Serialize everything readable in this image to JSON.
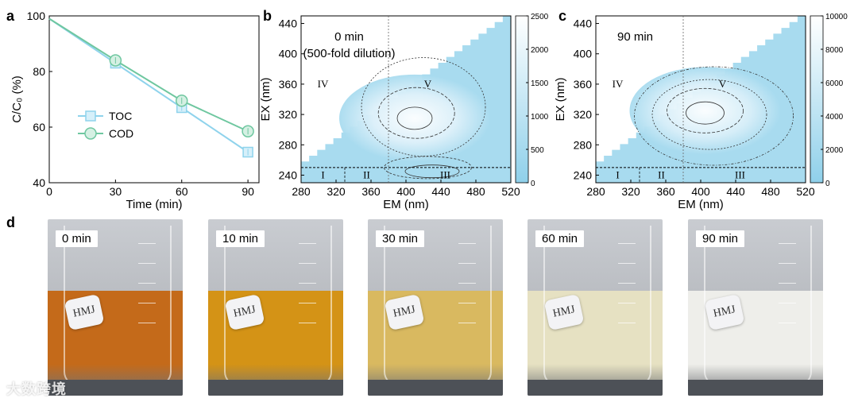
{
  "panels": {
    "a": "a",
    "b": "b",
    "c": "c",
    "d": "d"
  },
  "chart_data": [
    {
      "type": "line",
      "panel": "a",
      "x": [
        0,
        30,
        60,
        90
      ],
      "series": [
        {
          "name": "TOC",
          "values": [
            99,
            83,
            67,
            51
          ],
          "color": "#8fd3ec",
          "marker": "square"
        },
        {
          "name": "COD",
          "values": [
            99,
            84,
            69.5,
            58.5
          ],
          "color": "#6fc7a0",
          "marker": "circle"
        }
      ],
      "xlabel": "Time (min)",
      "ylabel": "C/C₀ (%)",
      "xticks": [
        "0",
        "30",
        "60",
        "90"
      ],
      "yticks": [
        "40",
        "60",
        "80",
        "100"
      ],
      "xlim": [
        0,
        95
      ],
      "ylim": [
        40,
        100
      ]
    },
    {
      "type": "heatmap",
      "panel": "b",
      "title": "0 min",
      "subtitle": "(500-fold dilution)",
      "xlabel": "EM (nm)",
      "ylabel": "EX (nm)",
      "xticks": [
        "280",
        "320",
        "360",
        "400",
        "440",
        "480",
        "520"
      ],
      "yticks": [
        "240",
        "280",
        "320",
        "360",
        "400",
        "440"
      ],
      "xlim": [
        280,
        520
      ],
      "ylim": [
        230,
        450
      ],
      "colorbar_ticks": [
        "0",
        "500",
        "1000",
        "1500",
        "2000",
        "2500"
      ],
      "colorbar_range": [
        0,
        2500
      ],
      "regions": [
        "I",
        "II",
        "III",
        "IV",
        "V"
      ],
      "divisions": {
        "ex_split": 250,
        "em_splits": [
          330,
          380
        ]
      },
      "peak": {
        "em": 410,
        "ex": 315
      }
    },
    {
      "type": "heatmap",
      "panel": "c",
      "title": "90 min",
      "xlabel": "EM (nm)",
      "ylabel": "EX (nm)",
      "xticks": [
        "280",
        "320",
        "360",
        "400",
        "440",
        "480",
        "520"
      ],
      "yticks": [
        "240",
        "280",
        "320",
        "360",
        "400",
        "440"
      ],
      "xlim": [
        280,
        520
      ],
      "ylim": [
        230,
        450
      ],
      "colorbar_ticks": [
        "0",
        "2000",
        "4000",
        "6000",
        "8000",
        "10000"
      ],
      "colorbar_range": [
        0,
        10000
      ],
      "regions": [
        "I",
        "II",
        "III",
        "IV",
        "V"
      ],
      "divisions": {
        "ex_split": 250,
        "em_splits": [
          330,
          380
        ]
      },
      "peak": {
        "em": 405,
        "ex": 325
      }
    }
  ],
  "photos": [
    {
      "time": "0 min",
      "label": "HMJ",
      "liquid": "#c46a1a"
    },
    {
      "time": "10 min",
      "label": "HMJ",
      "liquid": "#d49316"
    },
    {
      "time": "30 min",
      "label": "HMJ",
      "liquid": "#d9b960"
    },
    {
      "time": "60 min",
      "label": "HMJ",
      "liquid": "#e6e1c2"
    },
    {
      "time": "90 min",
      "label": "HMJ",
      "liquid": "#eeeeea"
    }
  ],
  "watermark": "大数跨境"
}
